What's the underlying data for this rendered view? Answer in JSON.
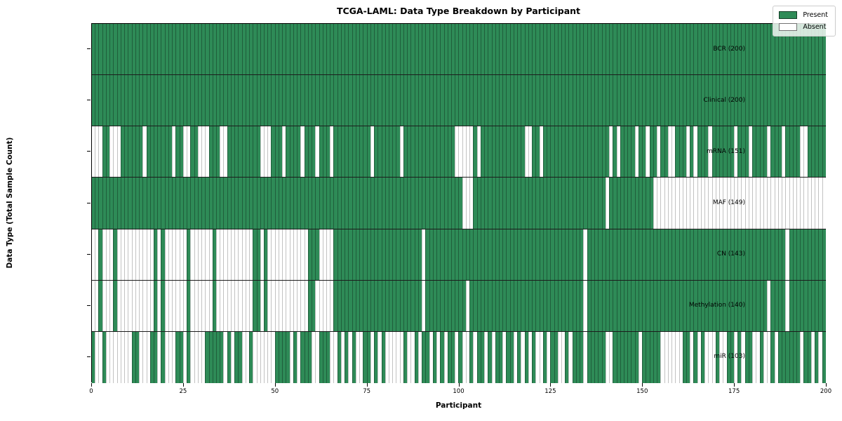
{
  "chart_data": {
    "type": "heatmap",
    "title": "TCGA-LAML: Data Type Breakdown by Participant",
    "xlabel": "Participant",
    "ylabel": "Data Type (Total Sample Count)",
    "n_participants": 200,
    "x_ticks": [
      0,
      25,
      50,
      75,
      100,
      125,
      150,
      175,
      200
    ],
    "colors": {
      "present": "#2E8B57",
      "absent": "#FFFFFF"
    },
    "legend": [
      {
        "label": "Present",
        "color": "#2E8B57"
      },
      {
        "label": "Absent",
        "color": "#FFFFFF"
      }
    ],
    "legend_position": "upper right",
    "grid": false,
    "rows": [
      {
        "label": "BCR (200)",
        "data_type": "BCR",
        "present_count": 200,
        "mode": "absent",
        "ranges": []
      },
      {
        "label": "Clinical (200)",
        "data_type": "Clinical",
        "present_count": 200,
        "mode": "absent",
        "ranges": []
      },
      {
        "label": "mRNA (151)",
        "data_type": "mRNA",
        "present_count": 151,
        "mode": "absent",
        "ranges": [
          [
            0,
            2
          ],
          [
            5,
            7
          ],
          [
            14,
            14
          ],
          [
            22,
            22
          ],
          [
            25,
            26
          ],
          [
            29,
            31
          ],
          [
            35,
            36
          ],
          [
            46,
            48
          ],
          [
            52,
            52
          ],
          [
            57,
            57
          ],
          [
            61,
            61
          ],
          [
            65,
            65
          ],
          [
            76,
            76
          ],
          [
            84,
            84
          ],
          [
            99,
            103
          ],
          [
            105,
            105
          ],
          [
            118,
            119
          ],
          [
            122,
            122
          ],
          [
            141,
            141
          ],
          [
            143,
            143
          ],
          [
            148,
            148
          ],
          [
            151,
            151
          ],
          [
            154,
            154
          ],
          [
            157,
            158
          ],
          [
            162,
            162
          ],
          [
            164,
            164
          ],
          [
            168,
            168
          ],
          [
            175,
            175
          ],
          [
            179,
            179
          ],
          [
            184,
            184
          ],
          [
            188,
            188
          ],
          [
            193,
            194
          ]
        ]
      },
      {
        "label": "MAF (149)",
        "data_type": "MAF",
        "present_count": 149,
        "mode": "absent",
        "ranges": [
          [
            101,
            103
          ],
          [
            140,
            140
          ],
          [
            153,
            199
          ]
        ]
      },
      {
        "label": "CN (143)",
        "data_type": "CN",
        "present_count": 143,
        "mode": "absent",
        "ranges": [
          [
            0,
            1
          ],
          [
            3,
            5
          ],
          [
            7,
            16
          ],
          [
            18,
            18
          ],
          [
            20,
            25
          ],
          [
            27,
            32
          ],
          [
            34,
            43
          ],
          [
            46,
            46
          ],
          [
            48,
            58
          ],
          [
            62,
            65
          ],
          [
            90,
            90
          ],
          [
            134,
            134
          ],
          [
            189,
            189
          ]
        ]
      },
      {
        "label": "Methylation (140)",
        "data_type": "Methylation",
        "present_count": 140,
        "mode": "absent",
        "ranges": [
          [
            0,
            1
          ],
          [
            3,
            5
          ],
          [
            7,
            16
          ],
          [
            18,
            18
          ],
          [
            20,
            25
          ],
          [
            27,
            32
          ],
          [
            34,
            43
          ],
          [
            46,
            46
          ],
          [
            48,
            58
          ],
          [
            61,
            65
          ],
          [
            90,
            90
          ],
          [
            102,
            102
          ],
          [
            134,
            134
          ],
          [
            184,
            184
          ],
          [
            189,
            189
          ]
        ]
      },
      {
        "label": "miR (103)",
        "data_type": "miR",
        "present_count": 103,
        "mode": "present",
        "ranges": [
          [
            0,
            0
          ],
          [
            3,
            3
          ],
          [
            11,
            12
          ],
          [
            16,
            17
          ],
          [
            19,
            19
          ],
          [
            23,
            24
          ],
          [
            26,
            26
          ],
          [
            31,
            35
          ],
          [
            37,
            37
          ],
          [
            39,
            40
          ],
          [
            43,
            43
          ],
          [
            50,
            53
          ],
          [
            55,
            55
          ],
          [
            57,
            59
          ],
          [
            62,
            64
          ],
          [
            67,
            67
          ],
          [
            69,
            69
          ],
          [
            71,
            71
          ],
          [
            74,
            75
          ],
          [
            77,
            77
          ],
          [
            79,
            79
          ],
          [
            85,
            85
          ],
          [
            88,
            88
          ],
          [
            90,
            91
          ],
          [
            93,
            93
          ],
          [
            95,
            95
          ],
          [
            97,
            98
          ],
          [
            100,
            100
          ],
          [
            103,
            103
          ],
          [
            105,
            106
          ],
          [
            108,
            108
          ],
          [
            110,
            111
          ],
          [
            113,
            114
          ],
          [
            116,
            116
          ],
          [
            118,
            118
          ],
          [
            120,
            120
          ],
          [
            123,
            123
          ],
          [
            125,
            126
          ],
          [
            129,
            129
          ],
          [
            131,
            133
          ],
          [
            135,
            139
          ],
          [
            142,
            148
          ],
          [
            150,
            154
          ],
          [
            161,
            162
          ],
          [
            164,
            164
          ],
          [
            166,
            166
          ],
          [
            170,
            170
          ],
          [
            173,
            174
          ],
          [
            176,
            176
          ],
          [
            178,
            179
          ],
          [
            182,
            182
          ],
          [
            185,
            185
          ],
          [
            187,
            192
          ],
          [
            194,
            195
          ],
          [
            197,
            197
          ],
          [
            199,
            199
          ]
        ]
      }
    ]
  }
}
